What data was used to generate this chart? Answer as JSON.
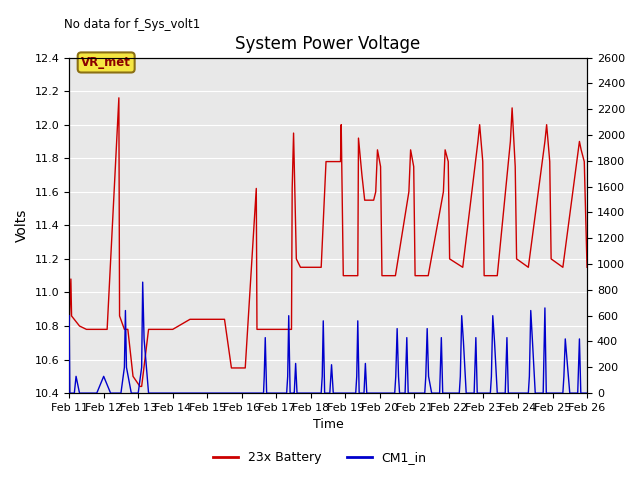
{
  "title": "System Power Voltage",
  "no_data_label": "No data for f_Sys_volt1",
  "xlabel": "Time",
  "ylabel": "Volts",
  "ylim_left": [
    10.4,
    12.4
  ],
  "ylim_right": [
    0,
    2600
  ],
  "yticks_left": [
    10.4,
    10.6,
    10.8,
    11.0,
    11.2,
    11.4,
    11.6,
    11.8,
    12.0,
    12.2,
    12.4
  ],
  "yticks_right": [
    0,
    200,
    400,
    600,
    800,
    1000,
    1200,
    1400,
    1600,
    1800,
    2000,
    2200,
    2400,
    2600
  ],
  "vr_met_label": "VR_met",
  "bg_color": "#e8e8e8",
  "line1_color": "#cc0000",
  "line2_color": "#0000cc",
  "legend_labels": [
    "23x Battery",
    "CM1_in"
  ],
  "xlim": [
    11,
    26
  ],
  "xtick_days": [
    11,
    12,
    13,
    14,
    15,
    16,
    17,
    18,
    19,
    20,
    21,
    22,
    23,
    24,
    25,
    26
  ],
  "red_data": [
    [
      11.0,
      10.8
    ],
    [
      11.05,
      11.08
    ],
    [
      11.07,
      10.86
    ],
    [
      11.3,
      10.8
    ],
    [
      11.5,
      10.78
    ],
    [
      12.0,
      10.78
    ],
    [
      12.1,
      10.78
    ],
    [
      12.44,
      12.16
    ],
    [
      12.46,
      10.86
    ],
    [
      12.6,
      10.78
    ],
    [
      12.7,
      10.78
    ],
    [
      12.85,
      10.5
    ],
    [
      13.05,
      10.44
    ],
    [
      13.1,
      10.44
    ],
    [
      13.3,
      10.78
    ],
    [
      14.0,
      10.78
    ],
    [
      14.5,
      10.84
    ],
    [
      14.55,
      10.84
    ],
    [
      15.0,
      10.84
    ],
    [
      15.5,
      10.84
    ],
    [
      15.7,
      10.55
    ],
    [
      16.0,
      10.55
    ],
    [
      16.1,
      10.55
    ],
    [
      16.42,
      11.62
    ],
    [
      16.44,
      10.78
    ],
    [
      16.6,
      10.78
    ],
    [
      16.85,
      10.78
    ],
    [
      16.9,
      10.78
    ],
    [
      17.44,
      10.78
    ],
    [
      17.46,
      11.62
    ],
    [
      17.5,
      11.95
    ],
    [
      17.58,
      11.2
    ],
    [
      17.7,
      11.15
    ],
    [
      18.3,
      11.15
    ],
    [
      18.44,
      11.78
    ],
    [
      18.86,
      11.78
    ],
    [
      18.88,
      12.0
    ],
    [
      18.94,
      11.1
    ],
    [
      19.36,
      11.1
    ],
    [
      19.38,
      11.92
    ],
    [
      19.48,
      11.7
    ],
    [
      19.56,
      11.55
    ],
    [
      19.82,
      11.55
    ],
    [
      19.88,
      11.6
    ],
    [
      19.93,
      11.85
    ],
    [
      20.02,
      11.75
    ],
    [
      20.06,
      11.1
    ],
    [
      20.45,
      11.1
    ],
    [
      20.84,
      11.6
    ],
    [
      20.89,
      11.85
    ],
    [
      20.98,
      11.75
    ],
    [
      21.02,
      11.1
    ],
    [
      21.4,
      11.1
    ],
    [
      21.84,
      11.6
    ],
    [
      21.89,
      11.85
    ],
    [
      21.98,
      11.78
    ],
    [
      22.02,
      11.2
    ],
    [
      22.4,
      11.15
    ],
    [
      22.84,
      11.9
    ],
    [
      22.89,
      12.0
    ],
    [
      22.98,
      11.78
    ],
    [
      23.02,
      11.1
    ],
    [
      23.4,
      11.1
    ],
    [
      23.78,
      11.9
    ],
    [
      23.83,
      12.1
    ],
    [
      23.92,
      11.75
    ],
    [
      23.96,
      11.2
    ],
    [
      24.3,
      11.15
    ],
    [
      24.78,
      11.9
    ],
    [
      24.83,
      12.0
    ],
    [
      24.92,
      11.78
    ],
    [
      24.96,
      11.2
    ],
    [
      25.3,
      11.15
    ],
    [
      25.78,
      11.9
    ],
    [
      25.83,
      11.85
    ],
    [
      25.92,
      11.78
    ],
    [
      26.0,
      11.15
    ]
  ],
  "blue_data_right": [
    [
      11.0,
      600
    ],
    [
      11.02,
      0
    ],
    [
      11.15,
      0
    ],
    [
      11.2,
      130
    ],
    [
      11.3,
      0
    ],
    [
      11.5,
      0
    ],
    [
      11.8,
      0
    ],
    [
      12.0,
      130
    ],
    [
      12.2,
      0
    ],
    [
      12.5,
      0
    ],
    [
      12.6,
      200
    ],
    [
      12.63,
      640
    ],
    [
      12.66,
      200
    ],
    [
      12.8,
      0
    ],
    [
      13.0,
      0
    ],
    [
      13.1,
      200
    ],
    [
      13.13,
      860
    ],
    [
      13.17,
      420
    ],
    [
      13.3,
      0
    ],
    [
      14.5,
      0
    ],
    [
      16.5,
      0
    ],
    [
      16.63,
      0
    ],
    [
      16.65,
      130
    ],
    [
      16.68,
      430
    ],
    [
      16.72,
      0
    ],
    [
      17.0,
      0
    ],
    [
      17.3,
      0
    ],
    [
      17.33,
      130
    ],
    [
      17.36,
      600
    ],
    [
      17.4,
      0
    ],
    [
      17.5,
      0
    ],
    [
      17.52,
      0
    ],
    [
      17.56,
      230
    ],
    [
      17.6,
      0
    ],
    [
      17.7,
      0
    ],
    [
      18.3,
      0
    ],
    [
      18.33,
      130
    ],
    [
      18.36,
      560
    ],
    [
      18.4,
      0
    ],
    [
      18.5,
      0
    ],
    [
      18.55,
      0
    ],
    [
      18.6,
      220
    ],
    [
      18.65,
      0
    ],
    [
      19.3,
      0
    ],
    [
      19.33,
      130
    ],
    [
      19.36,
      560
    ],
    [
      19.4,
      0
    ],
    [
      19.5,
      0
    ],
    [
      19.54,
      0
    ],
    [
      19.58,
      230
    ],
    [
      19.62,
      0
    ],
    [
      19.7,
      0
    ],
    [
      20.43,
      0
    ],
    [
      20.46,
      130
    ],
    [
      20.5,
      500
    ],
    [
      20.54,
      130
    ],
    [
      20.57,
      0
    ],
    [
      20.7,
      0
    ],
    [
      20.73,
      0
    ],
    [
      20.78,
      430
    ],
    [
      20.82,
      0
    ],
    [
      21.3,
      0
    ],
    [
      21.33,
      130
    ],
    [
      21.37,
      500
    ],
    [
      21.41,
      130
    ],
    [
      21.5,
      0
    ],
    [
      21.7,
      0
    ],
    [
      21.73,
      0
    ],
    [
      21.78,
      430
    ],
    [
      21.82,
      0
    ],
    [
      22.3,
      0
    ],
    [
      22.33,
      130
    ],
    [
      22.37,
      600
    ],
    [
      22.42,
      400
    ],
    [
      22.5,
      0
    ],
    [
      22.7,
      0
    ],
    [
      22.73,
      0
    ],
    [
      22.78,
      430
    ],
    [
      22.82,
      0
    ],
    [
      23.2,
      0
    ],
    [
      23.23,
      130
    ],
    [
      23.27,
      600
    ],
    [
      23.32,
      400
    ],
    [
      23.4,
      0
    ],
    [
      23.6,
      0
    ],
    [
      23.63,
      0
    ],
    [
      23.68,
      430
    ],
    [
      23.72,
      0
    ],
    [
      24.3,
      0
    ],
    [
      24.33,
      130
    ],
    [
      24.37,
      640
    ],
    [
      24.42,
      400
    ],
    [
      24.5,
      0
    ],
    [
      24.7,
      0
    ],
    [
      24.73,
      0
    ],
    [
      24.78,
      660
    ],
    [
      24.82,
      0
    ],
    [
      25.3,
      0
    ],
    [
      25.33,
      130
    ],
    [
      25.37,
      420
    ],
    [
      25.5,
      0
    ],
    [
      25.7,
      0
    ],
    [
      25.73,
      0
    ],
    [
      25.78,
      420
    ],
    [
      25.82,
      0
    ],
    [
      26.0,
      0
    ]
  ]
}
